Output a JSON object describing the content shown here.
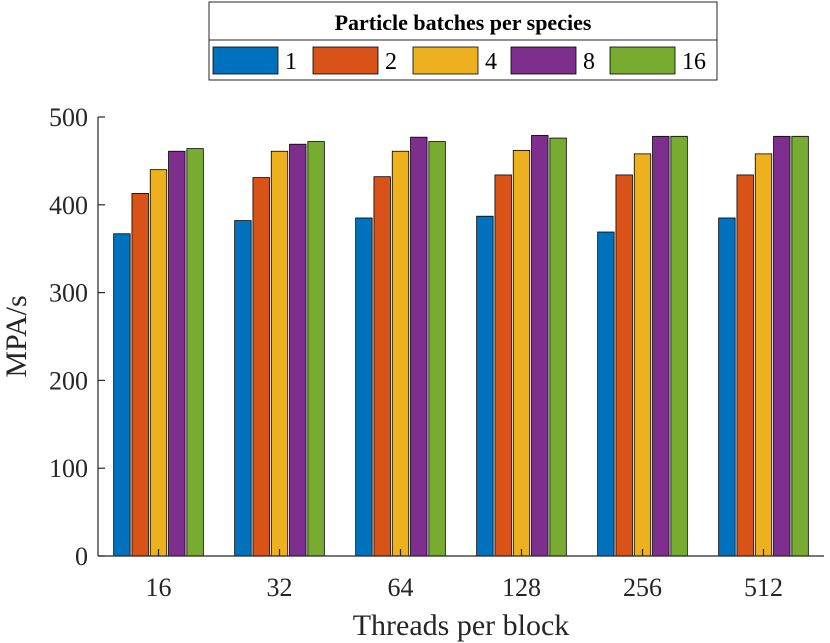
{
  "chart_data": {
    "type": "bar",
    "title": "",
    "xlabel": "Threads per block",
    "ylabel": "MPA/s",
    "ylim": [
      0,
      500
    ],
    "yticks": [
      0,
      100,
      200,
      300,
      400,
      500
    ],
    "categories": [
      "16",
      "32",
      "64",
      "128",
      "256",
      "512"
    ],
    "legend": {
      "title": "Particle batches per species",
      "placement": "top-outside"
    },
    "series": [
      {
        "name": "1",
        "color": "#0072BD",
        "values": [
          367,
          382,
          385,
          387,
          369,
          385
        ]
      },
      {
        "name": "2",
        "color": "#D95319",
        "values": [
          413,
          431,
          432,
          434,
          434,
          434
        ]
      },
      {
        "name": "4",
        "color": "#EDB120",
        "values": [
          440,
          461,
          461,
          462,
          458,
          458
        ]
      },
      {
        "name": "8",
        "color": "#7E2F8E",
        "values": [
          461,
          469,
          477,
          479,
          478,
          478
        ]
      },
      {
        "name": "16",
        "color": "#77AC30",
        "values": [
          464,
          472,
          472,
          476,
          478,
          478
        ]
      }
    ]
  }
}
